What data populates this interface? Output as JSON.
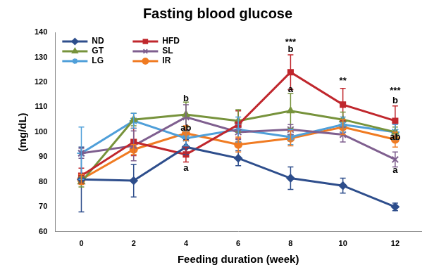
{
  "chart_data": {
    "type": "line",
    "title": "Fasting blood glucose",
    "x_label": "Feeding duration (week)",
    "y_label": "(mg/dL)",
    "categories": [
      "0",
      "2",
      "4",
      "6",
      "8",
      "10",
      "12"
    ],
    "ylim": [
      60,
      140
    ],
    "yticks": [
      60,
      70,
      80,
      90,
      100,
      110,
      120,
      130,
      140
    ],
    "grid": false,
    "legend": "upper left",
    "series": [
      {
        "name": "ND",
        "color": "#2e4e8c",
        "marker": "diamond",
        "values": [
          81,
          80.5,
          94,
          89.5,
          81.5,
          78.5,
          70
        ],
        "errors": [
          13,
          6.5,
          3,
          3,
          4.5,
          3,
          1.5
        ]
      },
      {
        "name": "HFD",
        "color": "#c0272d",
        "marker": "square",
        "values": [
          82.5,
          96,
          91,
          103,
          124,
          111,
          104.5
        ],
        "errors": [
          3,
          5.5,
          3,
          5.5,
          7,
          6.5,
          6
        ]
      },
      {
        "name": "GT",
        "color": "#77933c",
        "marker": "triangle",
        "values": [
          80,
          105,
          107,
          104.5,
          108.5,
          105,
          100
        ],
        "errors": [
          2,
          2.5,
          5,
          4.5,
          7,
          3,
          2
        ]
      },
      {
        "name": "SL",
        "color": "#7f5f8f",
        "marker": "x",
        "values": [
          91.5,
          94.5,
          106,
          100,
          101,
          99,
          89
        ],
        "errors": [
          2,
          6,
          5,
          3,
          2,
          3,
          3
        ]
      },
      {
        "name": "LG",
        "color": "#4f9fd9",
        "marker": "star",
        "values": [
          91.5,
          104.5,
          97.5,
          101,
          98,
          103,
          100
        ],
        "errors": [
          10.5,
          3,
          3,
          5,
          3,
          3,
          3
        ]
      },
      {
        "name": "IR",
        "color": "#f07b22",
        "marker": "circle",
        "values": [
          81,
          93,
          99.5,
          95,
          97.5,
          102,
          97
        ],
        "errors": [
          2,
          2,
          3,
          3,
          3,
          3,
          3
        ]
      }
    ],
    "annotations": [
      {
        "x": "4",
        "y": 113.5,
        "text": "b"
      },
      {
        "x": "4",
        "y": 101.5,
        "text": "ab"
      },
      {
        "x": "4",
        "y": 85.5,
        "text": "a"
      },
      {
        "x": "8",
        "y": 136,
        "text": "***"
      },
      {
        "x": "8",
        "y": 133,
        "text": "b"
      },
      {
        "x": "8",
        "y": 117,
        "text": "a"
      },
      {
        "x": "10",
        "y": 120.5,
        "text": "**"
      },
      {
        "x": "12",
        "y": 116.5,
        "text": "***"
      },
      {
        "x": "12",
        "y": 112.5,
        "text": "b"
      },
      {
        "x": "12",
        "y": 98,
        "text": "ab"
      },
      {
        "x": "12",
        "y": 84.5,
        "text": "a"
      }
    ]
  }
}
